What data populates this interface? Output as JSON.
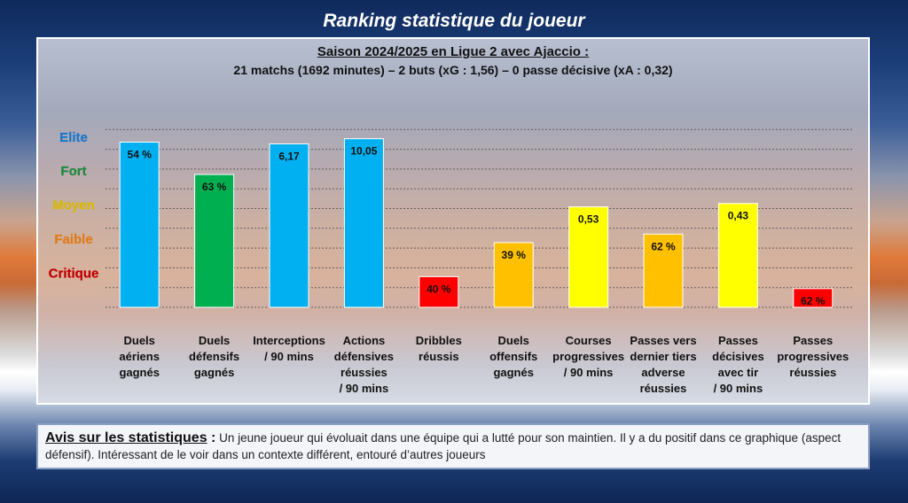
{
  "title": "Ranking statistique du joueur",
  "subtitle": "Saison 2024/2025 en Ligue 2 avec Ajaccio :",
  "summary": "21 matchs (1692 minutes) – 2 buts (xG : 1,56) – 0 passe décisive (xA : 0,32)",
  "colors": {
    "elite": "#00b0f0",
    "fort": "#00b050",
    "moyen": "#ffff00",
    "faible": "#ffc000",
    "critique": "#ff0000"
  },
  "chart_data": {
    "type": "bar",
    "levels": [
      {
        "name": "Elite",
        "key": "elite",
        "value": 5
      },
      {
        "name": "Fort",
        "key": "fort",
        "value": 4
      },
      {
        "name": "Moyen",
        "key": "moyen",
        "value": 3
      },
      {
        "name": "Faible",
        "key": "faible",
        "value": 2
      },
      {
        "name": "Critique",
        "key": "critique",
        "value": 1
      }
    ],
    "ylim": [
      0,
      5.8
    ],
    "grid": true,
    "bars": [
      {
        "lines": [
          "Duels",
          "aériens",
          "gagnés"
        ],
        "label": "54 %",
        "value": 4.85,
        "level": "elite"
      },
      {
        "lines": [
          "Duels",
          "défensifs",
          "gagnés"
        ],
        "label": "63 %",
        "value": 3.9,
        "level": "fort"
      },
      {
        "lines": [
          "Interceptions",
          "/ 90 mins"
        ],
        "label": "6,17",
        "value": 4.8,
        "level": "elite"
      },
      {
        "lines": [
          "Actions",
          "défensives",
          "réussies",
          "/ 90 mins"
        ],
        "label": "10,05",
        "value": 4.95,
        "level": "elite"
      },
      {
        "lines": [
          "Dribbles",
          "réussis"
        ],
        "label": "40 %",
        "value": 0.9,
        "level": "critique"
      },
      {
        "lines": [
          "Duels",
          "offensifs",
          "gagnés"
        ],
        "label": "39 %",
        "value": 1.9,
        "level": "faible"
      },
      {
        "lines": [
          "Courses",
          "progressives",
          "/ 90 mins"
        ],
        "label": "0,53",
        "value": 2.95,
        "level": "moyen"
      },
      {
        "lines": [
          "Passes vers",
          "dernier tiers",
          "adverse",
          "réussies"
        ],
        "label": "62 %",
        "value": 2.15,
        "level": "faible"
      },
      {
        "lines": [
          "Passes",
          "décisives",
          "avec tir",
          "/ 90 mins"
        ],
        "label": "0,43",
        "value": 3.05,
        "level": "moyen"
      },
      {
        "lines": [
          "Passes",
          "progressives",
          "réussies"
        ],
        "label": "62 %",
        "value": 0.55,
        "level": "critique"
      }
    ]
  },
  "comment": {
    "heading": "Avis sur les statistiques",
    "colon": " :",
    "text": " Un jeune joueur qui évoluait dans une équipe qui a lutté pour son maintien. Il y a du positif dans ce graphique (aspect défensif). Intéressant de le voir dans un contexte différent, entouré d’autres joueurs"
  }
}
